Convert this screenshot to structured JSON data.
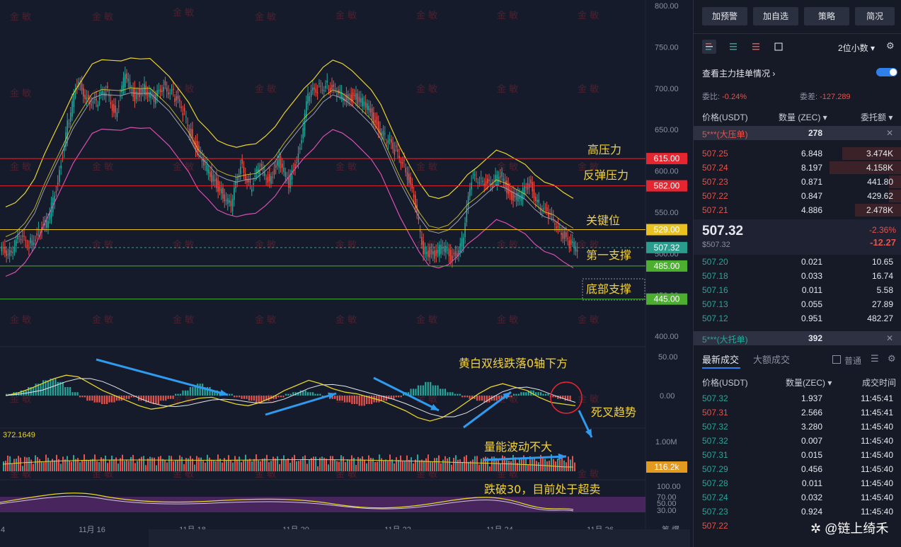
{
  "watermark": "金 敏",
  "chart_data": {
    "type": "candlestick",
    "y_axis": {
      "labels": [
        "800.00",
        "750.00",
        "700.00",
        "650.00",
        "600.00",
        "550.00",
        "500.00",
        "450.00",
        "400.00"
      ]
    },
    "x_axis": {
      "labels": [
        "11月 16",
        "11月 18",
        "11月 20",
        "11月 22",
        "11月 24",
        "11月 26"
      ]
    },
    "price_levels": [
      {
        "value": "615.00",
        "color": "#e5252f",
        "annotation": "高压力"
      },
      {
        "value": "582.00",
        "color": "#e5252f",
        "annotation": "反弹压力"
      },
      {
        "value": "529.00",
        "color": "#e8c21e",
        "annotation": "关键位"
      },
      {
        "value": "507.32",
        "color": "#2a9d8f",
        "annotation": "第一支撑"
      },
      {
        "value": "485.00",
        "color": "#4caf2f",
        "annotation": "底部支撑"
      },
      {
        "value": "445.00",
        "color": "#4caf2f",
        "annotation": ""
      }
    ],
    "close_path": [
      503,
      518,
      512,
      525,
      540,
      588,
      655,
      705,
      690,
      680,
      700,
      668,
      715,
      690,
      700,
      685,
      705,
      692,
      672,
      640,
      612,
      592,
      575,
      556,
      610,
      580,
      603,
      590,
      612,
      585,
      620,
      690,
      700,
      705,
      692,
      690,
      688,
      680,
      660,
      640,
      625,
      610,
      565,
      505,
      498,
      508,
      495,
      512,
      590,
      592,
      580,
      598,
      570,
      568,
      585,
      560,
      545,
      535,
      512,
      507
    ],
    "macd": {
      "labels": [
        "50.00",
        "0.00"
      ],
      "annotation": "黄白双线跌落0轴下方",
      "annotation2": "死叉趋势",
      "histogram": [
        2,
        4,
        6,
        10,
        14,
        18,
        20,
        16,
        10,
        4,
        -2,
        -6,
        -8,
        -10,
        -8,
        -6,
        -4,
        -2,
        -6,
        -8,
        -10,
        -6,
        -4,
        2,
        6,
        10,
        14,
        10,
        6,
        4,
        2,
        -2,
        -4,
        -6,
        -8,
        -6,
        -4,
        -2,
        2,
        4,
        6,
        4,
        2,
        -2,
        -4,
        -6,
        -8,
        -10,
        -12,
        -10,
        -8,
        -6,
        -4,
        -2,
        4,
        8,
        12,
        16,
        12,
        8,
        4,
        2,
        -2,
        -4,
        -6,
        -8,
        -6,
        -4,
        -2,
        2,
        4,
        6,
        4,
        2,
        -2,
        -4,
        -6
      ]
    },
    "volume": {
      "label": "372.1649",
      "axis_labels": [
        "1.00M"
      ],
      "current": "116.2k",
      "annotation": "量能波动不大"
    },
    "rsi": {
      "axis_labels": [
        "100.00",
        "70.00",
        "50.00",
        "30.00"
      ],
      "annotation": "跌破30，目前处于超卖"
    },
    "current_price": "507.32",
    "edge_left": "4",
    "edge_right": "筹 爆"
  },
  "sidebar": {
    "buttons": [
      "加预警",
      "加自选",
      "策略",
      "简况"
    ],
    "decimal": "2位小数",
    "main_orders": "查看主力挂单情况",
    "wei_bi_label": "委比:",
    "wei_bi": "-0.24%",
    "wei_cha_label": "委差:",
    "wei_cha": "-127.289",
    "col_price": "价格(USDT)",
    "col_qty": "数量 (ZEC)",
    "col_total": "委托额",
    "big_ask_label": "5***(大压单)",
    "big_ask_val": "278",
    "asks": [
      {
        "p": "507.25",
        "q": "6.848",
        "t": "3.474K",
        "w": 0.7
      },
      {
        "p": "507.24",
        "q": "8.197",
        "t": "4.158K",
        "w": 0.85
      },
      {
        "p": "507.23",
        "q": "0.871",
        "t": "441.80",
        "w": 0.15
      },
      {
        "p": "507.22",
        "q": "0.847",
        "t": "429.62",
        "w": 0.15
      },
      {
        "p": "507.21",
        "q": "4.886",
        "t": "2.478K",
        "w": 0.55
      }
    ],
    "last_price": "507.32",
    "last_usd": "$507.32",
    "change_pct": "-2.36%",
    "change_val": "-12.27",
    "bids": [
      {
        "p": "507.20",
        "q": "0.021",
        "t": "10.65"
      },
      {
        "p": "507.18",
        "q": "0.033",
        "t": "16.74"
      },
      {
        "p": "507.16",
        "q": "0.011",
        "t": "5.58"
      },
      {
        "p": "507.13",
        "q": "0.055",
        "t": "27.89"
      },
      {
        "p": "507.12",
        "q": "0.951",
        "t": "482.27"
      }
    ],
    "big_bid_label": "5***(大托单)",
    "big_bid_val": "392",
    "tab_latest": "最新成交",
    "tab_big": "大额成交",
    "ordinary": "普通",
    "trade_col_price": "价格(USDT)",
    "trade_col_qty": "数量(ZEC)",
    "trade_col_time": "成交时间",
    "trades": [
      {
        "p": "507.32",
        "q": "1.937",
        "t": "11:45:41",
        "s": "g"
      },
      {
        "p": "507.31",
        "q": "2.566",
        "t": "11:45:41",
        "s": "r"
      },
      {
        "p": "507.32",
        "q": "3.280",
        "t": "11:45:40",
        "s": "g"
      },
      {
        "p": "507.32",
        "q": "0.007",
        "t": "11:45:40",
        "s": "g"
      },
      {
        "p": "507.31",
        "q": "0.015",
        "t": "11:45:40",
        "s": "g"
      },
      {
        "p": "507.29",
        "q": "0.456",
        "t": "11:45:40",
        "s": "g"
      },
      {
        "p": "507.28",
        "q": "0.011",
        "t": "11:45:40",
        "s": "g"
      },
      {
        "p": "507.24",
        "q": "0.032",
        "t": "11:45:40",
        "s": "g"
      },
      {
        "p": "507.23",
        "q": "0.924",
        "t": "11:45:40",
        "s": "g"
      },
      {
        "p": "507.22",
        "q": "",
        "t": "",
        "s": "r"
      }
    ],
    "brand": "链上绮禾"
  }
}
